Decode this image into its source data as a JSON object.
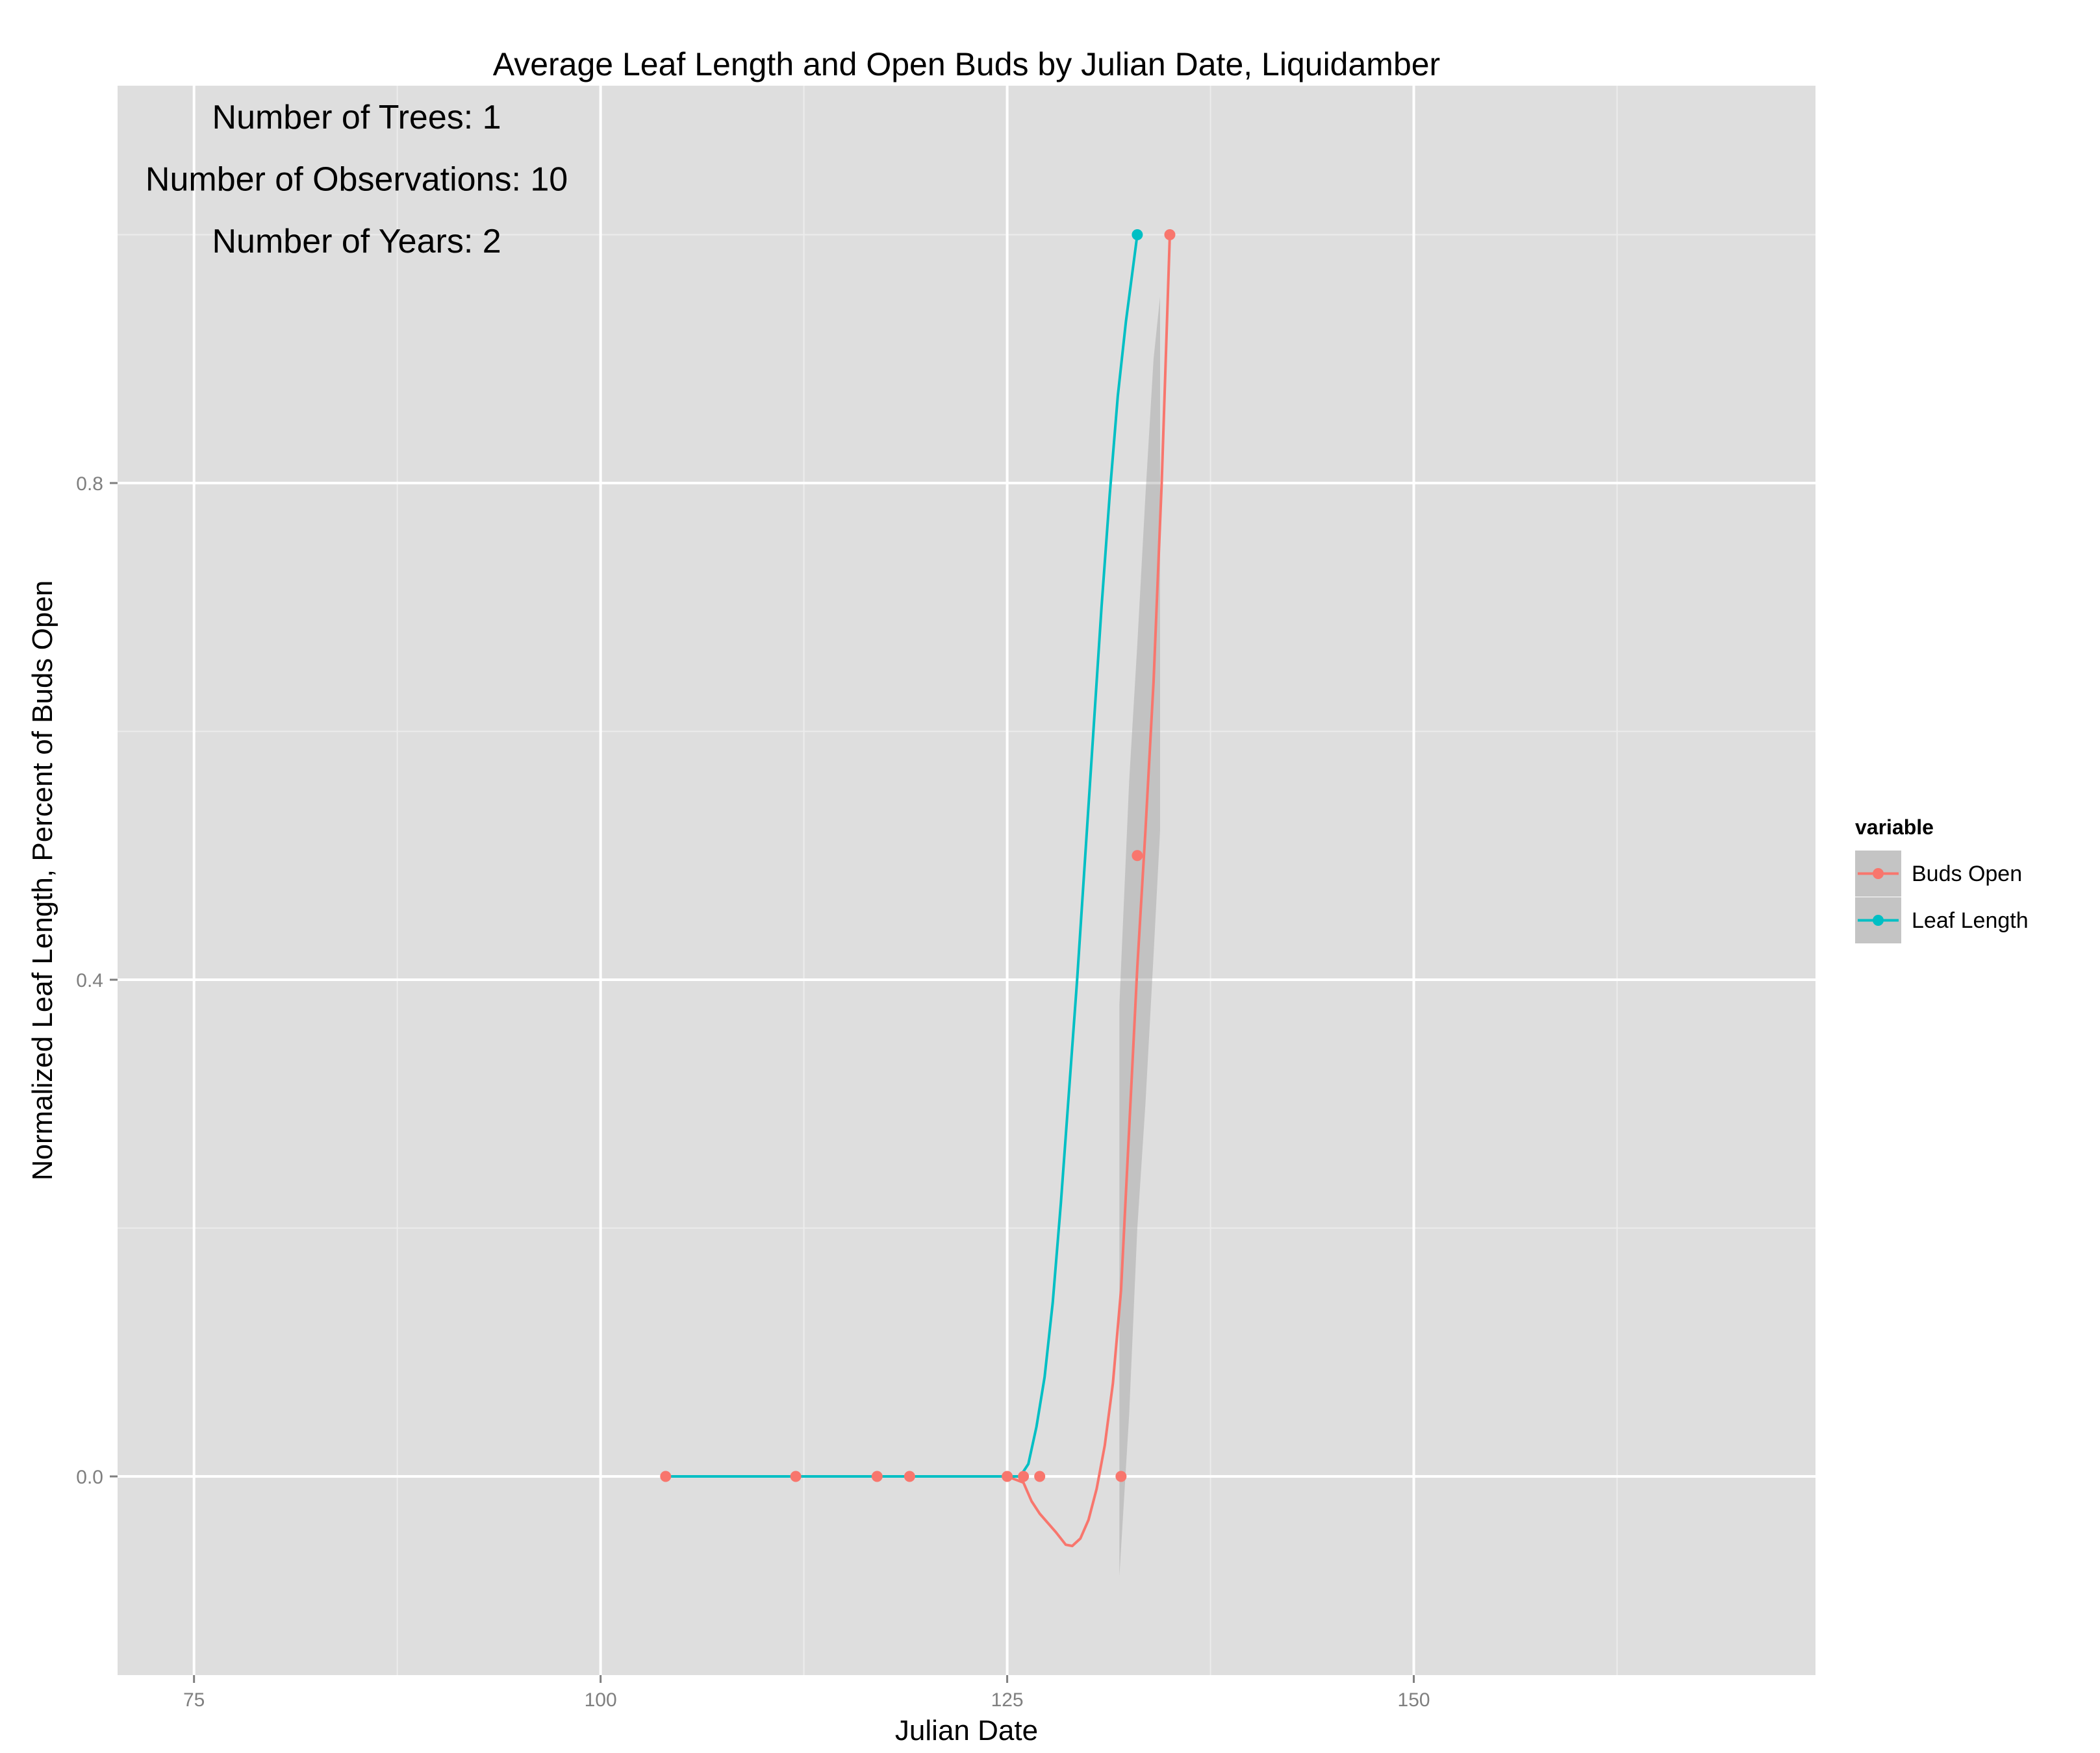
{
  "chart_data": {
    "type": "line",
    "title": "Average Leaf Length and Open Buds by Julian Date, Liquidamber",
    "xlabel": "Julian Date",
    "ylabel": "Normalized Leaf Length, Percent of Buds Open",
    "xlim": [
      70.3,
      174.7
    ],
    "ylim": [
      -0.16,
      1.12
    ],
    "x_ticks": [
      75,
      100,
      125,
      150
    ],
    "x_tick_labels": [
      "75",
      "100",
      "125",
      "150"
    ],
    "y_ticks": [
      0.0,
      0.4,
      0.8
    ],
    "y_tick_labels": [
      "0.0",
      "0.4",
      "0.8"
    ],
    "grid": true,
    "background": "#dedede",
    "annotations": [
      {
        "text": "Number of Trees: 1"
      },
      {
        "text": "Number of Observations: 10"
      },
      {
        "text": "Number of Years: 2"
      }
    ],
    "legend": {
      "title": "variable",
      "placement": "right",
      "entries": [
        "Buds Open",
        "Leaf Length"
      ]
    },
    "series": [
      {
        "name": "Buds Open",
        "color": "#f8766d",
        "points": [
          [
            104,
            0
          ],
          [
            112,
            0
          ],
          [
            117,
            0
          ],
          [
            119,
            0
          ],
          [
            125,
            0
          ],
          [
            126,
            0
          ],
          [
            127,
            0
          ],
          [
            132,
            0
          ],
          [
            133,
            0.5
          ],
          [
            135,
            1.0
          ]
        ],
        "smooth": [
          [
            104,
            0
          ],
          [
            125,
            0
          ],
          [
            126,
            -0.005
          ],
          [
            126.5,
            -0.02
          ],
          [
            127,
            -0.03
          ],
          [
            128,
            -0.045
          ],
          [
            128.6,
            -0.055
          ],
          [
            129,
            -0.056
          ],
          [
            129.5,
            -0.05
          ],
          [
            130,
            -0.035
          ],
          [
            130.5,
            -0.01
          ],
          [
            131,
            0.025
          ],
          [
            131.5,
            0.075
          ],
          [
            132,
            0.15
          ],
          [
            132.5,
            0.28
          ],
          [
            133,
            0.41
          ],
          [
            133.5,
            0.52
          ],
          [
            134,
            0.64
          ],
          [
            134.5,
            0.8
          ],
          [
            135,
            1.0
          ]
        ],
        "ribbon": [
          [
            131.9,
            -0.08,
            0.38
          ],
          [
            132.5,
            0.05,
            0.56
          ],
          [
            133,
            0.2,
            0.67
          ],
          [
            133.5,
            0.3,
            0.79
          ],
          [
            134,
            0.42,
            0.9
          ],
          [
            134.4,
            0.52,
            0.95
          ]
        ]
      },
      {
        "name": "Leaf Length",
        "color": "#00bfc4",
        "points": [
          [
            133,
            1.0
          ]
        ],
        "smooth": [
          [
            104,
            0
          ],
          [
            125.8,
            0
          ],
          [
            126.3,
            0.01
          ],
          [
            126.8,
            0.04
          ],
          [
            127.3,
            0.08
          ],
          [
            127.8,
            0.14
          ],
          [
            128.3,
            0.22
          ],
          [
            128.8,
            0.31
          ],
          [
            129.3,
            0.4
          ],
          [
            129.8,
            0.5
          ],
          [
            130.3,
            0.6
          ],
          [
            130.8,
            0.7
          ],
          [
            131.3,
            0.79
          ],
          [
            131.8,
            0.87
          ],
          [
            132.3,
            0.93
          ],
          [
            132.7,
            0.97
          ],
          [
            133,
            1.0
          ]
        ]
      }
    ]
  }
}
